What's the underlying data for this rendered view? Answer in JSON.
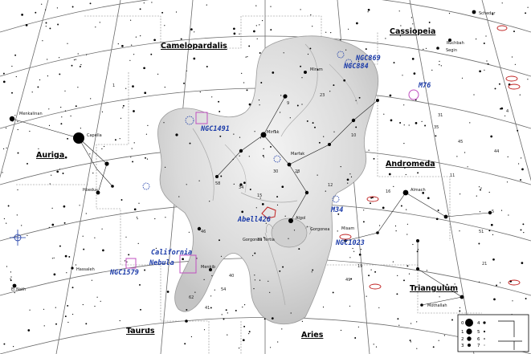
{
  "constellations": [
    {
      "id": "camelopardalis",
      "label": "Camelopardalis"
    },
    {
      "id": "cassiopeia",
      "label": "Cassiopeia"
    },
    {
      "id": "auriga",
      "label": "Auriga"
    },
    {
      "id": "andromeda",
      "label": "Andromeda"
    },
    {
      "id": "triangulum",
      "label": "Triangulum"
    },
    {
      "id": "taurus",
      "label": "Taurus"
    },
    {
      "id": "aries",
      "label": "Aries"
    }
  ],
  "deep_sky": [
    {
      "id": "ngc869",
      "label": "NGC869"
    },
    {
      "id": "ngc884",
      "label": "NGC884"
    },
    {
      "id": "m76",
      "label": "M76"
    },
    {
      "id": "ngc1491",
      "label": "NGC1491"
    },
    {
      "id": "abell426",
      "label": "Abell426"
    },
    {
      "id": "m34",
      "label": "M34"
    },
    {
      "id": "ngc1023",
      "label": "NGC1023"
    },
    {
      "id": "california",
      "label": "California"
    },
    {
      "id": "nebula",
      "label": "Nebula"
    },
    {
      "id": "ngc1579",
      "label": "NGC1579"
    }
  ],
  "star_names": [
    {
      "id": "capella",
      "label": "Capella"
    },
    {
      "id": "menkalinan",
      "label": "Menkalinan"
    },
    {
      "id": "mirfak",
      "label": "Mirfak"
    },
    {
      "id": "almach",
      "label": "Almach"
    },
    {
      "id": "algol",
      "label": "Algol"
    },
    {
      "id": "gorgonea",
      "label": "Gorgonea Tertia"
    },
    {
      "id": "miram",
      "label": "Miram"
    },
    {
      "id": "menkib",
      "label": "Menkib"
    },
    {
      "id": "mothallah",
      "label": "Mothallah"
    },
    {
      "id": "hassaleh",
      "label": "Hassaleh"
    },
    {
      "id": "elnath",
      "label": "El Nath"
    },
    {
      "id": "schedar",
      "label": "Schedar"
    },
    {
      "id": "ruchbah",
      "label": "Ruchbah"
    },
    {
      "id": "segin",
      "label": "Segin"
    },
    {
      "id": "marfak",
      "label": "Marfak"
    },
    {
      "id": "hoedus",
      "label": "Hoedus"
    },
    {
      "id": "gorgonea2",
      "label": "Gorgonea"
    },
    {
      "id": "misam",
      "label": "Misam"
    }
  ],
  "numbers": [
    "58",
    "49",
    "23",
    "30",
    "9",
    "54",
    "46",
    "12",
    "34",
    "39",
    "10",
    "41",
    "19",
    "15",
    "28",
    "16",
    "11",
    "31",
    "21",
    "45",
    "35",
    "4",
    "44",
    "5",
    "51",
    "40",
    "62",
    "1",
    "2",
    "3",
    "6",
    "7"
  ],
  "legend": {
    "title_hint": "magnitude",
    "mags": [
      "0",
      "1",
      "2",
      "3",
      "4",
      "5",
      "6",
      "7"
    ]
  },
  "colors": {
    "grid": "#6b6b6b",
    "boundary": "#888888",
    "dso": "#1a3aa8",
    "nebula_box": "#c050c0",
    "galaxy": "#c02020"
  }
}
